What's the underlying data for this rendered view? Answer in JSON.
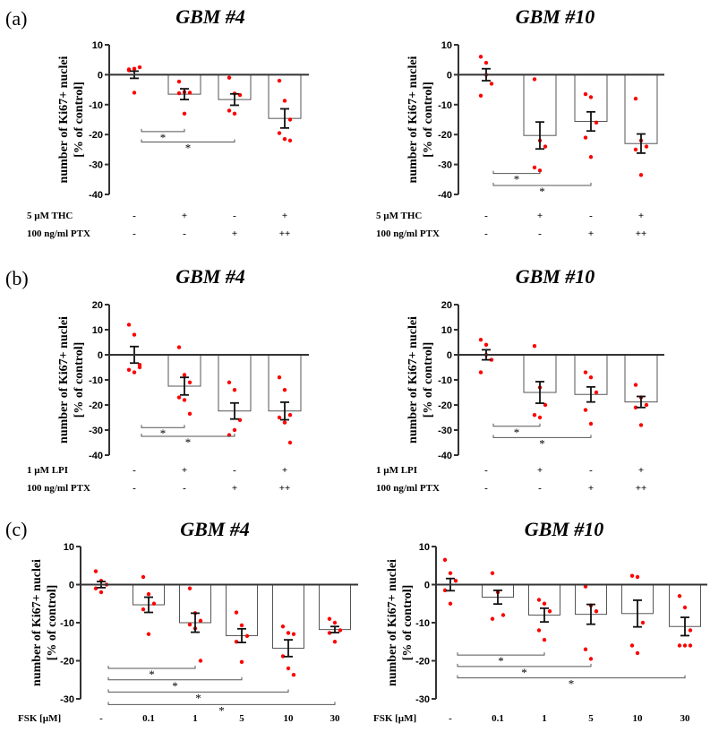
{
  "chart_data": [
    {
      "type": "bar",
      "panel": "(a)",
      "title": "GBM #4",
      "ylabel": [
        "number of Ki67+ nuclei",
        "[% of control]"
      ],
      "ylim": [
        -40,
        10
      ],
      "yticks": [
        10,
        0,
        -10,
        -20,
        -30,
        -40
      ],
      "rows": [
        {
          "label": "5 µM THC",
          "values": [
            "-",
            "+",
            "-",
            "+"
          ]
        },
        {
          "label": "100 ng/ml PTX",
          "values": [
            "-",
            "-",
            "+",
            "++"
          ]
        }
      ],
      "means": [
        0,
        -6.5,
        -8.3,
        -14.6
      ],
      "sem": [
        1.2,
        1.8,
        1.9,
        3.2
      ],
      "points": [
        [
          1.5,
          2,
          2.5,
          1.8,
          -6
        ],
        [
          -2.3,
          -5.8,
          -6,
          -6.2,
          -13
        ],
        [
          -1,
          -6.3,
          -6.8,
          -12,
          -13
        ],
        [
          -2,
          -8.7,
          -15,
          -19.5,
          -21.5,
          -22
        ]
      ],
      "brackets": [
        {
          "from": 0,
          "to": 1,
          "y": -19,
          "label": "*"
        },
        {
          "from": 0,
          "to": 2,
          "y": -22.5,
          "label": "*"
        }
      ]
    },
    {
      "type": "bar",
      "panel": "",
      "title": "GBM #10",
      "ylabel": [
        "number of Ki67+ nuclei",
        "[% of control]"
      ],
      "ylim": [
        -40,
        10
      ],
      "yticks": [
        10,
        0,
        -10,
        -20,
        -30,
        -40
      ],
      "rows": [
        {
          "label": "5 µM THC",
          "values": [
            "-",
            "+",
            "-",
            "+"
          ]
        },
        {
          "label": "100 ng/ml PTX",
          "values": [
            "-",
            "-",
            "+",
            "++"
          ]
        }
      ],
      "means": [
        0,
        -20.3,
        -15.6,
        -23
      ],
      "sem": [
        2,
        4.5,
        3.2,
        3.2
      ],
      "points": [
        [
          6,
          4,
          -3,
          -7,
          0
        ],
        [
          -1.5,
          -22,
          -24,
          -31,
          -32
        ],
        [
          -6.5,
          -7.5,
          -16,
          -21,
          -27.5
        ],
        [
          -8,
          -22,
          -24,
          -25,
          -33.5
        ]
      ],
      "brackets": [
        {
          "from": 0,
          "to": 1,
          "y": -33,
          "label": "*"
        },
        {
          "from": 0,
          "to": 2,
          "y": -37,
          "label": "*"
        }
      ]
    },
    {
      "type": "bar",
      "panel": "(b)",
      "title": "GBM #4",
      "ylabel": [
        "number of Ki67+ nuclei",
        "[% of control]"
      ],
      "ylim": [
        -40,
        20
      ],
      "yticks": [
        20,
        10,
        0,
        -10,
        -20,
        -30,
        -40
      ],
      "rows": [
        {
          "label": "1 µM LPI",
          "values": [
            "-",
            "+",
            "-",
            "+"
          ]
        },
        {
          "label": "100 ng/ml PTX",
          "values": [
            "-",
            "-",
            "+",
            "++"
          ]
        }
      ],
      "means": [
        0,
        -12.5,
        -22.4,
        -22.4
      ],
      "sem": [
        3.3,
        3.5,
        3.2,
        3.5
      ],
      "points": [
        [
          12,
          8,
          -4,
          -6,
          -7,
          -5
        ],
        [
          3,
          -8,
          -11,
          -17,
          -18,
          -23.5
        ],
        [
          -11,
          -14,
          -26,
          -32,
          -30
        ],
        [
          -9,
          -14,
          -24,
          -25,
          -27,
          -35
        ]
      ],
      "brackets": [
        {
          "from": 0,
          "to": 1,
          "y": -29,
          "label": "*"
        },
        {
          "from": 0,
          "to": 2,
          "y": -32.5,
          "label": "*"
        }
      ]
    },
    {
      "type": "bar",
      "panel": "",
      "title": "GBM #10",
      "ylabel": [
        "number of Ki67+ nuclei",
        "[% of control]"
      ],
      "ylim": [
        -40,
        20
      ],
      "yticks": [
        20,
        10,
        0,
        -10,
        -20,
        -30,
        -40
      ],
      "rows": [
        {
          "label": "1 µM LPI",
          "values": [
            "-",
            "+",
            "-",
            "+"
          ]
        },
        {
          "label": "100 ng/ml PTX",
          "values": [
            "-",
            "-",
            "+",
            "++"
          ]
        }
      ],
      "means": [
        0,
        -15,
        -15.8,
        -18.8
      ],
      "sem": [
        2,
        4.3,
        3,
        2.2
      ],
      "points": [
        [
          6,
          4,
          -2,
          -7,
          0
        ],
        [
          3.5,
          -13,
          -20,
          -24,
          -25
        ],
        [
          -7,
          -9,
          -15,
          -22,
          -27.5
        ],
        [
          -12,
          -17,
          -20,
          -21,
          -28
        ]
      ],
      "brackets": [
        {
          "from": 0,
          "to": 1,
          "y": -28.5,
          "label": "*"
        },
        {
          "from": 0,
          "to": 2,
          "y": -33,
          "label": "*"
        }
      ]
    },
    {
      "type": "bar",
      "panel": "(c)",
      "title": "GBM #4",
      "ylabel": [
        "number of Ki67+ nuclei",
        "[% of control]"
      ],
      "ylim": [
        -30,
        10
      ],
      "yticks": [
        10,
        0,
        -10,
        -20,
        -30
      ],
      "rows": [
        {
          "label": "FSK [µM]",
          "values": [
            "-",
            "0.1",
            "1",
            "5",
            "10",
            "30"
          ]
        }
      ],
      "means": [
        0,
        -5.3,
        -10,
        -13.4,
        -16.7,
        -11.8
      ],
      "sem": [
        0.8,
        2,
        2.5,
        1.8,
        2.2,
        0.8
      ],
      "points": [
        [
          3.5,
          1,
          0,
          -1,
          -2
        ],
        [
          2,
          -2.5,
          -5,
          -6.5,
          -13
        ],
        [
          -1,
          -7.5,
          -9.5,
          -10.5,
          -11.5,
          -20
        ],
        [
          -7.3,
          -10.7,
          -13.5,
          -15,
          -20.3
        ],
        [
          -11,
          -12.7,
          -13,
          -18.8,
          -22,
          -23.7
        ],
        [
          -9,
          -10,
          -12,
          -12.7,
          -15
        ]
      ],
      "brackets": [
        {
          "from": 0,
          "to": 2,
          "y": -22,
          "label": "*"
        },
        {
          "from": 0,
          "to": 3,
          "y": -25,
          "label": "*"
        },
        {
          "from": 0,
          "to": 4,
          "y": -28.2,
          "label": "*"
        },
        {
          "from": 0,
          "to": 5,
          "y": -31.5,
          "label": "*"
        }
      ]
    },
    {
      "type": "bar",
      "panel": "",
      "title": "GBM #10",
      "ylabel": [
        "number of Ki67+ nuclei",
        "[% of control]"
      ],
      "ylim": [
        -30,
        10
      ],
      "yticks": [
        10,
        0,
        -10,
        -20,
        -30
      ],
      "rows": [
        {
          "label": "FSK [µM]",
          "values": [
            "-",
            "0.1",
            "1",
            "5",
            "10",
            "30"
          ]
        }
      ],
      "means": [
        0,
        -3.3,
        -8,
        -7.8,
        -7.6,
        -11
      ],
      "sem": [
        1.6,
        1.8,
        1.8,
        2.6,
        3.5,
        2.4
      ],
      "points": [
        [
          6.5,
          3,
          1,
          -1.5,
          -5
        ],
        [
          3,
          -2,
          -8,
          -9
        ],
        [
          -4,
          -5,
          -7,
          -12,
          -14.5
        ],
        [
          -0.5,
          -5.5,
          -7,
          -17,
          -19.5
        ],
        [
          2.3,
          2,
          -10,
          -16,
          -18
        ],
        [
          -3,
          -6,
          -12,
          -16,
          -16,
          -16
        ]
      ],
      "brackets": [
        {
          "from": 0,
          "to": 2,
          "y": -18.5,
          "label": "*"
        },
        {
          "from": 0,
          "to": 3,
          "y": -21.5,
          "label": "*"
        },
        {
          "from": 0,
          "to": 5,
          "y": -24.5,
          "label": "*"
        }
      ]
    }
  ],
  "colors": {
    "points": "#ff0000",
    "axis": "#333333",
    "bar": "#555555"
  }
}
